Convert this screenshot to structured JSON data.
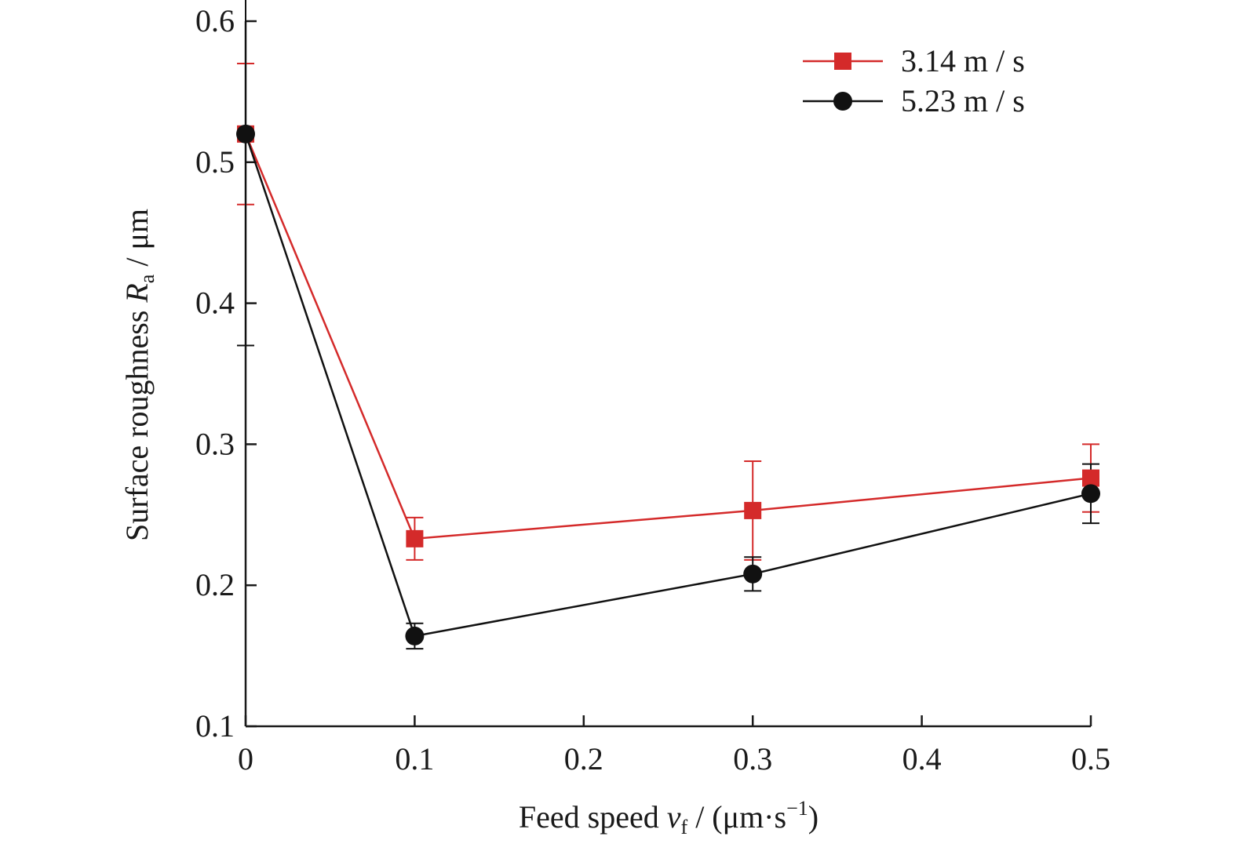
{
  "chart_data": {
    "type": "line",
    "title": "",
    "xlabel": {
      "main": "Feed speed ",
      "var": "v",
      "sub": "f",
      "rest": " / (μm·s",
      "sup": "−1",
      "close": ")"
    },
    "ylabel": {
      "main": "Surface roughness ",
      "var": "R",
      "sub": "a",
      "rest": " / μm"
    },
    "x": [
      0,
      0.1,
      0.3,
      0.5
    ],
    "xlim": [
      0,
      0.5
    ],
    "ylim": [
      0.1,
      0.6
    ],
    "xticks": [
      0,
      0.1,
      0.2,
      0.3,
      0.4,
      0.5
    ],
    "xtick_labels": [
      "0",
      "0.1",
      "0.2",
      "0.3",
      "0.4",
      "0.5"
    ],
    "yticks": [
      0.1,
      0.2,
      0.3,
      0.4,
      0.5,
      0.6
    ],
    "ytick_labels": [
      "0.1",
      "0.2",
      "0.3",
      "0.4",
      "0.5",
      "0.6"
    ],
    "grid": false,
    "legend_position": "top-right",
    "series": [
      {
        "name": "3.14 m / s",
        "color": "#d42a2a",
        "marker": "square",
        "values": [
          0.52,
          0.233,
          0.253,
          0.276
        ],
        "error": [
          0.05,
          0.015,
          0.035,
          0.024
        ]
      },
      {
        "name": "5.23 m / s",
        "color": "#111111",
        "marker": "circle",
        "values": [
          0.52,
          0.164,
          0.208,
          0.265
        ],
        "error": [
          0.15,
          0.009,
          0.012,
          0.021
        ]
      }
    ]
  }
}
